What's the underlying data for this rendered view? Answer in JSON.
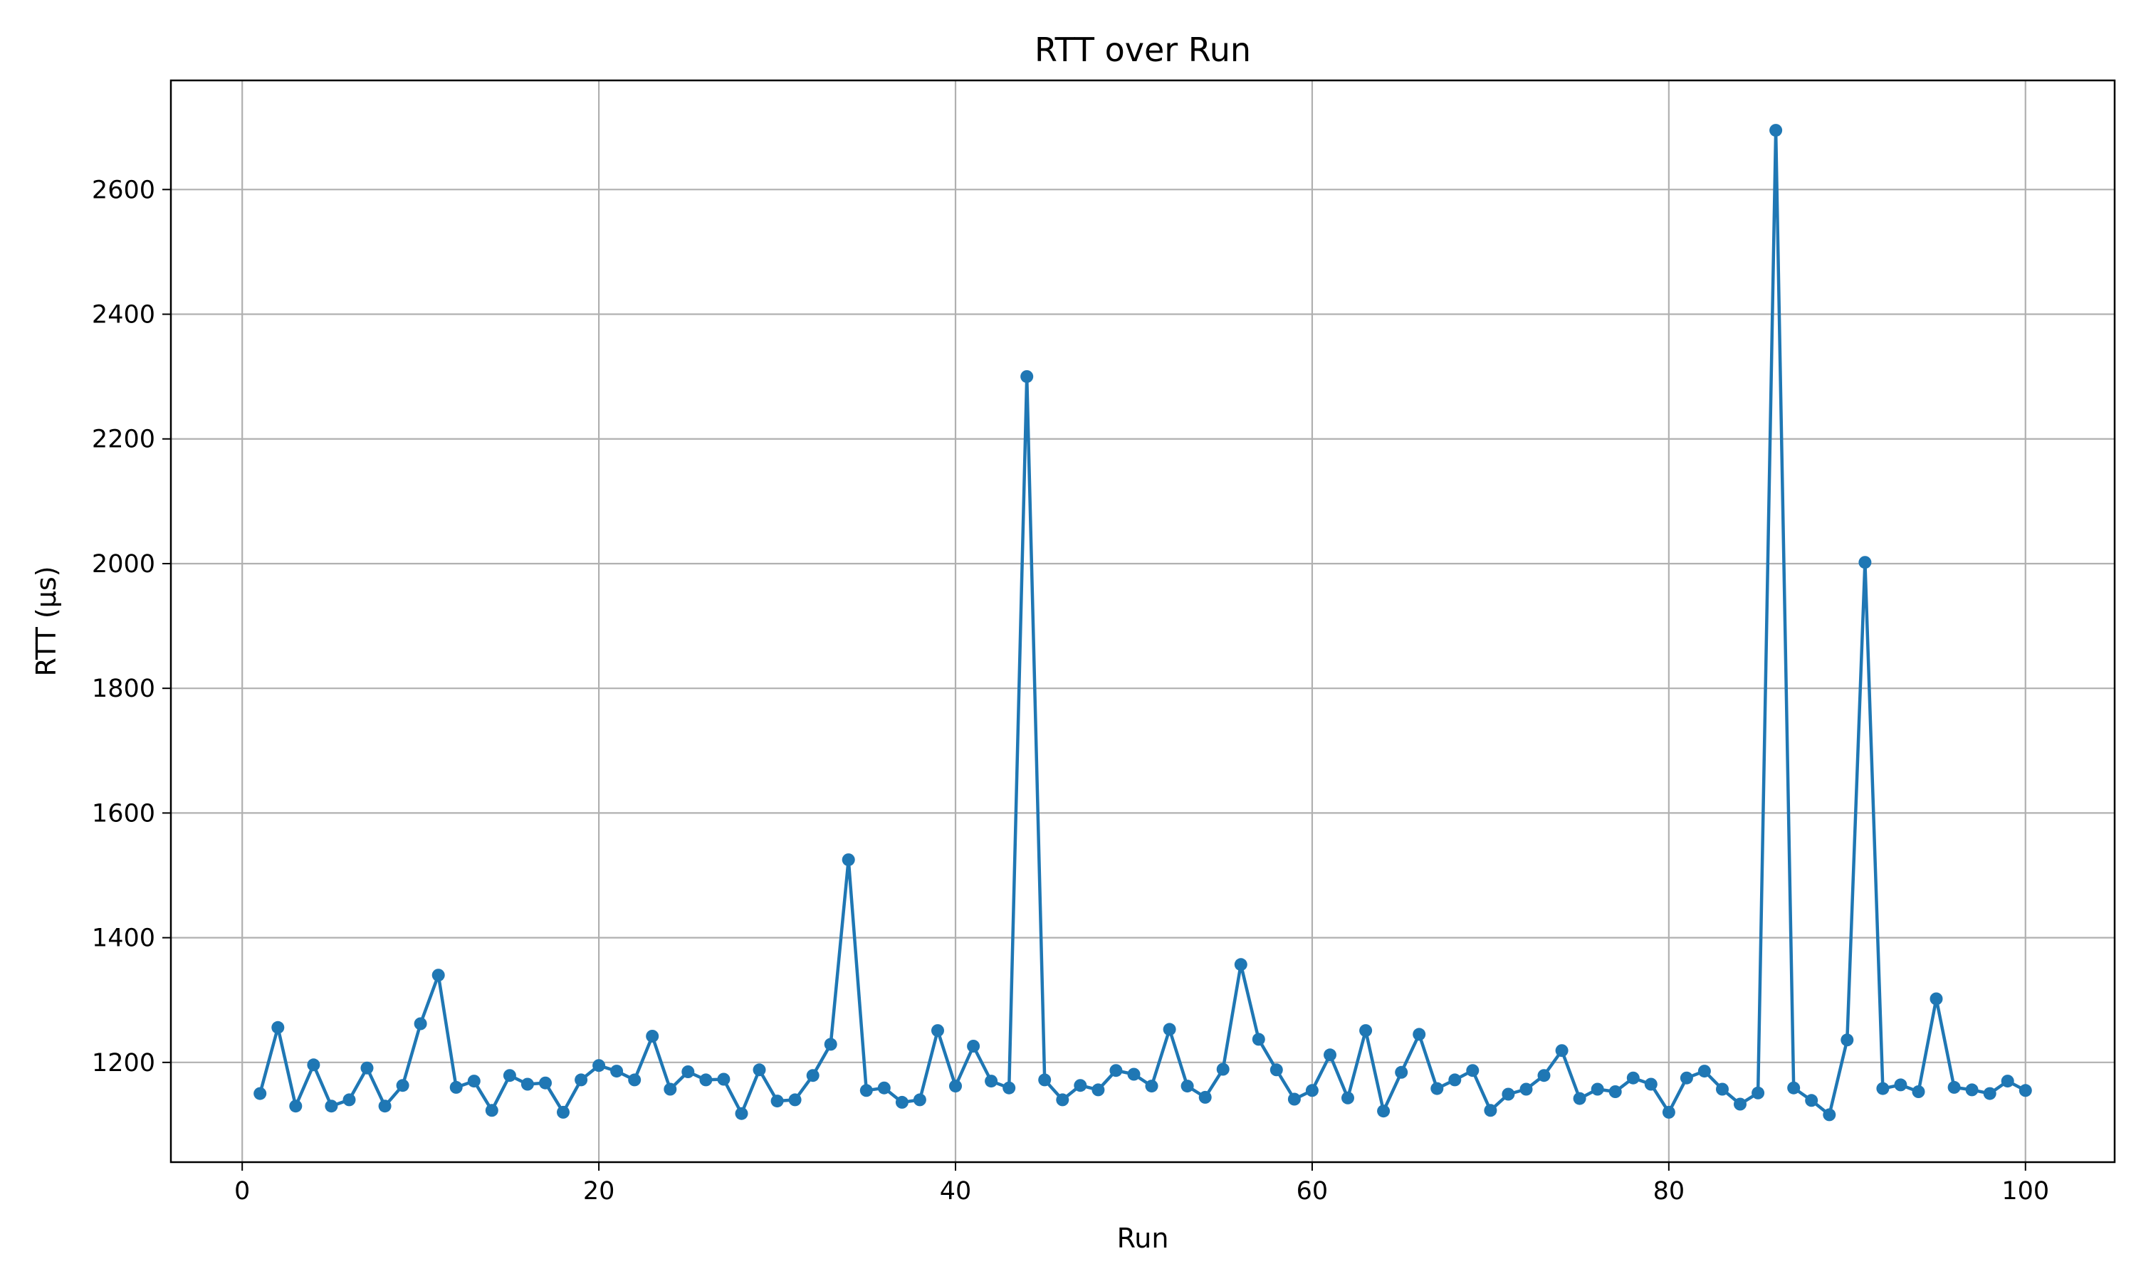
{
  "chart_data": {
    "type": "line",
    "title": "RTT over Run",
    "xlabel": "Run",
    "ylabel": "RTT (µs)",
    "xlim": [
      -4,
      105
    ],
    "ylim": [
      1040,
      2775
    ],
    "xticks": [
      0,
      20,
      40,
      60,
      80,
      100
    ],
    "yticks": [
      1200,
      1400,
      1600,
      1800,
      2000,
      2200,
      2400,
      2600
    ],
    "grid": true,
    "marker": "circle",
    "color": "#1f77b4",
    "series": [
      {
        "x": [
          1,
          2,
          3,
          4,
          5,
          6,
          7,
          8,
          9,
          10,
          11,
          12,
          13,
          14,
          15,
          16,
          17,
          18,
          19,
          20,
          21,
          22,
          23,
          24,
          25,
          26,
          27,
          28,
          29,
          30,
          31,
          32,
          33,
          34,
          35,
          36,
          37,
          38,
          39,
          40,
          41,
          42,
          43,
          44,
          45,
          46,
          47,
          48,
          49,
          50,
          51,
          52,
          53,
          54,
          55,
          56,
          57,
          58,
          59,
          60,
          61,
          62,
          63,
          64,
          65,
          66,
          67,
          68,
          69,
          70,
          71,
          72,
          73,
          74,
          75,
          76,
          77,
          78,
          79,
          80,
          81,
          82,
          83,
          84,
          85,
          86,
          87,
          88,
          89,
          90,
          91,
          92,
          93,
          94,
          95,
          96,
          97,
          98,
          99,
          100
        ],
        "values": [
          1150,
          1256,
          1130,
          1196,
          1130,
          1140,
          1191,
          1130,
          1163,
          1262,
          1340,
          1160,
          1170,
          1123,
          1179,
          1165,
          1167,
          1120,
          1172,
          1195,
          1186,
          1172,
          1242,
          1157,
          1185,
          1172,
          1173,
          1118,
          1188,
          1138,
          1140,
          1179,
          1229,
          1525,
          1155,
          1159,
          1136,
          1140,
          1251,
          1162,
          1226,
          1170,
          1159,
          2300,
          1172,
          1140,
          1163,
          1156,
          1187,
          1181,
          1162,
          1253,
          1162,
          1144,
          1189,
          1357,
          1237,
          1188,
          1141,
          1155,
          1212,
          1143,
          1251,
          1122,
          1184,
          1245,
          1158,
          1172,
          1187,
          1123,
          1149,
          1157,
          1179,
          1219,
          1142,
          1157,
          1153,
          1175,
          1165,
          1120,
          1175,
          1186,
          1157,
          1133,
          1151,
          2695,
          1159,
          1139,
          1116,
          1236,
          2002,
          1158,
          1164,
          1153,
          1302,
          1160,
          1156,
          1150,
          1170,
          1155
        ]
      }
    ]
  }
}
